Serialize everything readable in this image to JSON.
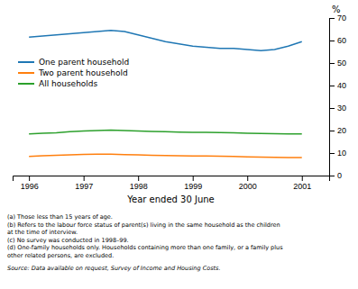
{
  "chart_data": {
    "type": "line",
    "xlabel": "Year ended 30 June",
    "ylabel": "%",
    "xlim": [
      1995.7,
      2001.5
    ],
    "xticks": [
      1996,
      1997,
      1998,
      1999,
      2000,
      2001
    ],
    "ylim": [
      0,
      70
    ],
    "yticks": [
      0,
      10,
      20,
      30,
      40,
      50,
      60,
      70
    ],
    "grid": false,
    "legend": "upper left",
    "x": [
      1996.0,
      1996.25,
      1996.5,
      1996.75,
      1997.0,
      1997.25,
      1997.5,
      1997.75,
      1998.0,
      1998.25,
      1998.5,
      1998.75,
      1999.0,
      1999.25,
      1999.5,
      1999.75,
      2000.0,
      2000.25,
      2000.5,
      2000.75,
      2001.0
    ],
    "series": [
      {
        "name": "One parent household",
        "values": [
          61.5,
          62.0,
          62.5,
          63.0,
          63.5,
          64.0,
          64.5,
          64.0,
          62.5,
          61.0,
          59.5,
          58.5,
          57.5,
          57.0,
          56.5,
          56.5,
          56.0,
          55.5,
          56.0,
          57.5,
          59.5
        ]
      },
      {
        "name": "Two parent household",
        "values": [
          8.5,
          8.8,
          9.0,
          9.2,
          9.4,
          9.5,
          9.5,
          9.3,
          9.2,
          9.0,
          8.9,
          8.8,
          8.7,
          8.7,
          8.6,
          8.5,
          8.3,
          8.2,
          8.1,
          8.0,
          8.0
        ]
      },
      {
        "name": "All households",
        "values": [
          18.5,
          18.8,
          19.0,
          19.5,
          19.8,
          20.0,
          20.2,
          20.0,
          19.8,
          19.6,
          19.5,
          19.3,
          19.2,
          19.2,
          19.1,
          19.0,
          18.8,
          18.7,
          18.6,
          18.5,
          18.5
        ]
      }
    ],
    "footnotes": [
      "(a) Those less than 15 years of age.",
      "(b) Refers to the labour force status of parent(s) living in the same household as the children",
      "at the time of interview.",
      "(c) No survey was conducted in 1998–99.",
      "(d) One-family households only. Households containing more than one family, or a family plus",
      "other related persons, are excluded."
    ],
    "source": "Source: Data available on request, Survey of Income and Housing Costs."
  }
}
